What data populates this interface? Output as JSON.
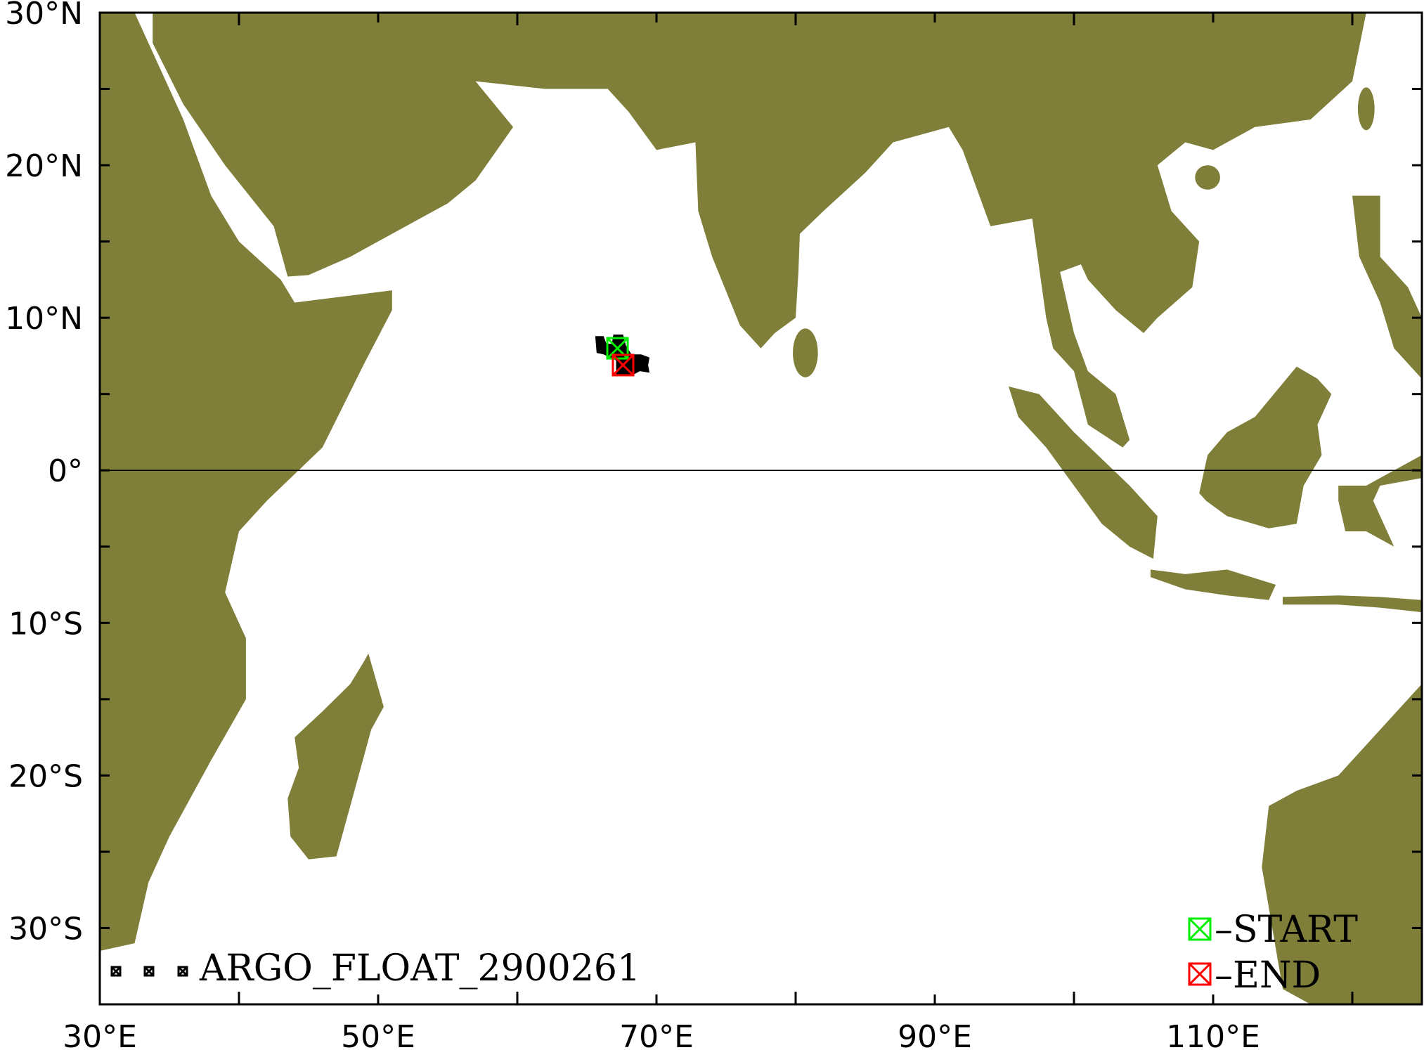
{
  "map": {
    "projection": "equirectangular",
    "lon_range": [
      30,
      125
    ],
    "lat_range": [
      -35,
      30
    ],
    "land_color": "#7f7f3a",
    "ocean_color": "#ffffff",
    "equator_line": true,
    "x_ticks": [
      {
        "lon": 30,
        "label": "30°E"
      },
      {
        "lon": 50,
        "label": "50°E"
      },
      {
        "lon": 70,
        "label": "70°E"
      },
      {
        "lon": 90,
        "label": "90°E"
      },
      {
        "lon": 110,
        "label": "110°E"
      }
    ],
    "y_ticks": [
      {
        "lat": 30,
        "label": "30°N"
      },
      {
        "lat": 20,
        "label": "20°N"
      },
      {
        "lat": 10,
        "label": "10°N"
      },
      {
        "lat": 0,
        "label": "0°"
      },
      {
        "lat": -10,
        "label": "10°S"
      },
      {
        "lat": -20,
        "label": "20°S"
      },
      {
        "lat": -30,
        "label": "30°S"
      }
    ]
  },
  "track": {
    "name": "ARGO_FLOAT_2900261",
    "color": "#000000",
    "start": {
      "lon": 67.2,
      "lat": 8.0,
      "color": "#00ee00"
    },
    "end": {
      "lon": 67.6,
      "lat": 6.9,
      "color": "#ff0000"
    }
  },
  "legend": {
    "track_label": "ARGO_FLOAT_2900261",
    "start_label": "–START",
    "end_label": "–END",
    "marker_icon": "crossed-square-icon"
  }
}
